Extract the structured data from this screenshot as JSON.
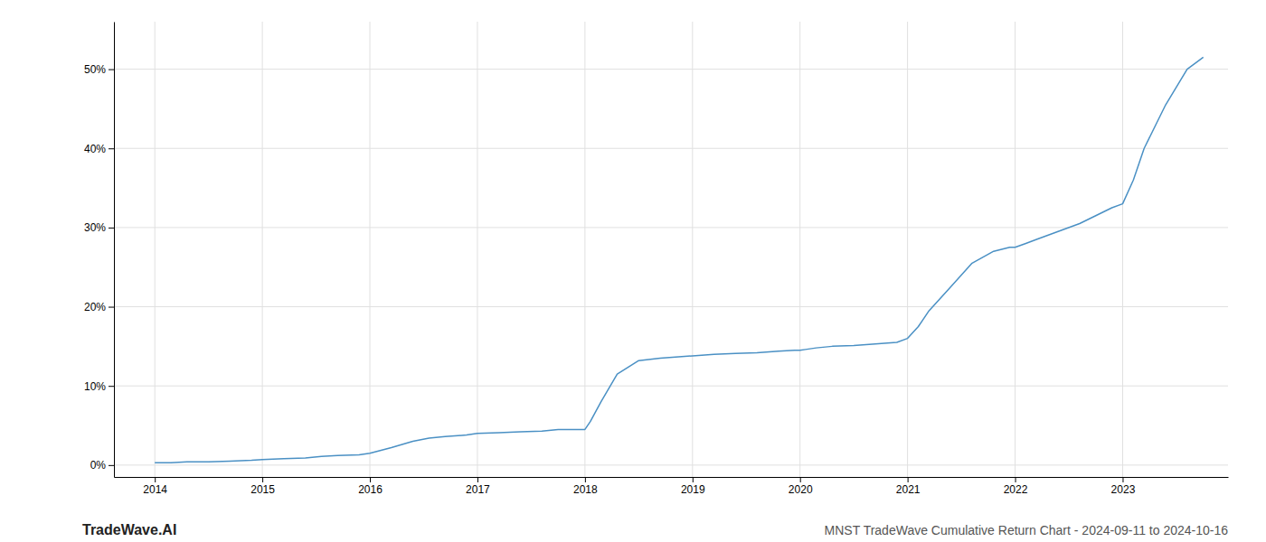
{
  "chart_data": {
    "type": "line",
    "title": "MNST TradeWave Cumulative Return Chart - 2024-09-11 to 2024-10-16",
    "annotations": [
      "TradeWave.AI"
    ],
    "color": "#4a90c4",
    "grid": true,
    "x": [
      2014.0,
      2014.15,
      2014.3,
      2014.5,
      2014.7,
      2014.9,
      2015.0,
      2015.2,
      2015.4,
      2015.55,
      2015.7,
      2015.9,
      2016.0,
      2016.2,
      2016.4,
      2016.55,
      2016.7,
      2016.9,
      2017.0,
      2017.2,
      2017.4,
      2017.6,
      2017.75,
      2017.9,
      2018.0,
      2018.05,
      2018.15,
      2018.3,
      2018.5,
      2018.7,
      2018.9,
      2019.0,
      2019.2,
      2019.4,
      2019.6,
      2019.8,
      2019.95,
      2020.0,
      2020.05,
      2020.15,
      2020.3,
      2020.5,
      2020.7,
      2020.9,
      2021.0,
      2021.1,
      2021.2,
      2021.4,
      2021.6,
      2021.8,
      2021.95,
      2022.0,
      2022.1,
      2022.2,
      2022.4,
      2022.6,
      2022.75,
      2022.9,
      2023.0,
      2023.1,
      2023.2,
      2023.4,
      2023.6,
      2023.75
    ],
    "values": [
      0.3,
      0.3,
      0.4,
      0.4,
      0.5,
      0.6,
      0.7,
      0.8,
      0.9,
      1.1,
      1.2,
      1.3,
      1.5,
      2.2,
      3.0,
      3.4,
      3.6,
      3.8,
      4.0,
      4.1,
      4.2,
      4.3,
      4.5,
      4.5,
      4.5,
      5.5,
      8.0,
      11.5,
      13.2,
      13.5,
      13.7,
      13.8,
      14.0,
      14.1,
      14.2,
      14.4,
      14.5,
      14.5,
      14.6,
      14.8,
      15.0,
      15.1,
      15.3,
      15.5,
      16.0,
      17.5,
      19.5,
      22.5,
      25.5,
      27.0,
      27.5,
      27.5,
      28.0,
      28.5,
      29.5,
      30.5,
      31.5,
      32.5,
      33.0,
      36.0,
      40.0,
      45.5,
      50.0,
      51.5
    ],
    "xlim": [
      2013.62,
      2023.98
    ],
    "ylim": [
      -1.5,
      56
    ],
    "xticks": [
      2014,
      2015,
      2016,
      2017,
      2018,
      2019,
      2020,
      2021,
      2022,
      2023
    ],
    "yticks": [
      {
        "value": 0,
        "label": "0%"
      },
      {
        "value": 10,
        "label": "10%"
      },
      {
        "value": 20,
        "label": "20%"
      },
      {
        "value": 30,
        "label": "30%"
      },
      {
        "value": 40,
        "label": "40%"
      },
      {
        "value": 50,
        "label": "50%"
      }
    ]
  }
}
